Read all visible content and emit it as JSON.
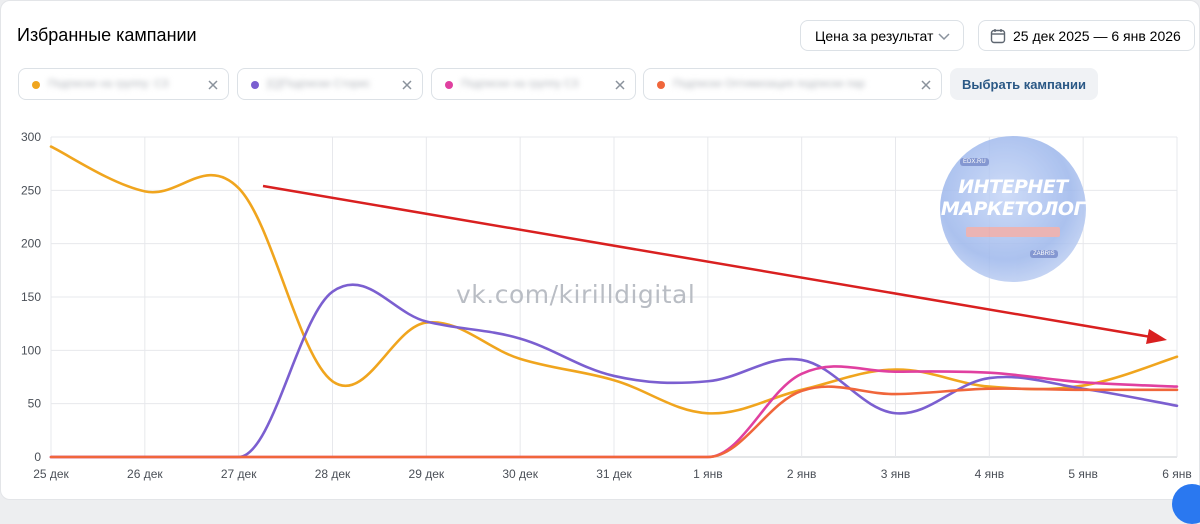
{
  "header": {
    "title": "Избранные кампании",
    "metric_select": {
      "value": "Цена за результат",
      "icon": "chevron-down-icon"
    },
    "date_range": {
      "value": "25 дек 2025 — 6 янв 2026",
      "icon": "calendar-icon"
    }
  },
  "campaign_chips": [
    {
      "label": "Подписки на группу: СЗ",
      "color": "#f0a51e"
    },
    {
      "label": "[Q]Подписки Сторис",
      "color": "#7b5fd0"
    },
    {
      "label": "Подписки на группу СЗ",
      "color": "#e040a0"
    },
    {
      "label": "Подписки Оптимизация подписки пар",
      "color": "#f0663b"
    }
  ],
  "select_campaigns_label": "Выбрать кампании",
  "watermark": "vk.com/kirilldigital",
  "badge": {
    "line1": "ИНТЕРНЕТ",
    "line2": "МАРКЕТОЛОГ",
    "tag1": "EDX.RU",
    "tag2": "ZABRIS"
  },
  "colors": {
    "accent_link": "#2a5885",
    "arrow": "#d92020"
  },
  "chart_data": {
    "type": "line",
    "title": "",
    "categories": [
      "25 дек",
      "26 дек",
      "27 дек",
      "28 дек",
      "29 дек",
      "30 дек",
      "31 дек",
      "1 янв",
      "2 янв",
      "3 янв",
      "4 янв",
      "5 янв",
      "6 янв"
    ],
    "ylim": [
      0,
      300
    ],
    "yticks": [
      0,
      50,
      100,
      150,
      200,
      250,
      300
    ],
    "grid": true,
    "series": [
      {
        "color": "#f0a51e",
        "values": [
          291,
          249,
          252,
          71,
          126,
          92,
          72,
          41,
          63,
          82,
          66,
          67,
          94
        ]
      },
      {
        "color": "#7b5fd0",
        "values": [
          0,
          0,
          0,
          155,
          127,
          111,
          76,
          71,
          91,
          41,
          74,
          64,
          48
        ]
      },
      {
        "color": "#e040a0",
        "values": [
          0,
          0,
          0,
          0,
          0,
          0,
          0,
          0,
          78,
          80,
          79,
          70,
          66
        ]
      },
      {
        "color": "#f0663b",
        "values": [
          0,
          0,
          0,
          0,
          0,
          0,
          0,
          0,
          62,
          59,
          64,
          63,
          63
        ]
      }
    ]
  }
}
